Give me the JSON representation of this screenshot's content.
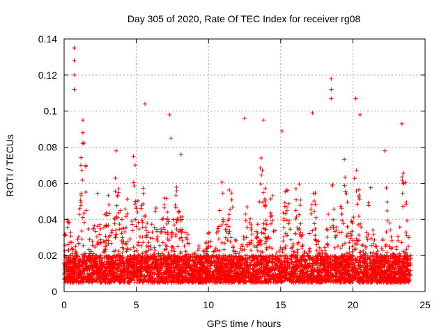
{
  "chart_data": {
    "type": "scatter",
    "title": "Day 305 of 2020, Rate Of TEC Index for receiver rg08",
    "xlabel": "GPS time / hours",
    "ylabel": "ROTI / TECUs",
    "xlim": [
      0,
      25
    ],
    "ylim": [
      0,
      0.14
    ],
    "xticks": [
      "0",
      "5",
      "10",
      "15",
      "20",
      "25"
    ],
    "yticks": [
      "0",
      "0.02",
      "0.04",
      "0.06",
      "0.08",
      "0.1",
      "0.12",
      "0.14"
    ],
    "grid": true,
    "marker": "plus",
    "color": "#ff0000",
    "x_range_of_data": [
      0,
      24
    ],
    "baseline_band": [
      0.005,
      0.02
    ],
    "outlier_points": [
      {
        "x": 0.7,
        "y": 0.135
      },
      {
        "x": 0.7,
        "y": 0.128
      },
      {
        "x": 0.72,
        "y": 0.12
      },
      {
        "x": 0.7,
        "y": 0.112
      },
      {
        "x": 1.3,
        "y": 0.095
      },
      {
        "x": 1.3,
        "y": 0.088
      },
      {
        "x": 1.3,
        "y": 0.082
      },
      {
        "x": 5.6,
        "y": 0.104
      },
      {
        "x": 7.3,
        "y": 0.098
      },
      {
        "x": 7.4,
        "y": 0.085
      },
      {
        "x": 12.5,
        "y": 0.096
      },
      {
        "x": 13.8,
        "y": 0.095
      },
      {
        "x": 15.1,
        "y": 0.089
      },
      {
        "x": 17.2,
        "y": 0.099
      },
      {
        "x": 18.5,
        "y": 0.118
      },
      {
        "x": 18.5,
        "y": 0.112
      },
      {
        "x": 18.5,
        "y": 0.107
      },
      {
        "x": 20.2,
        "y": 0.107
      },
      {
        "x": 20.5,
        "y": 0.098
      },
      {
        "x": 23.4,
        "y": 0.093
      },
      {
        "x": 3.6,
        "y": 0.078
      },
      {
        "x": 4.8,
        "y": 0.075
      },
      {
        "x": 8.1,
        "y": 0.076
      },
      {
        "x": 22.2,
        "y": 0.078
      }
    ],
    "activity_peaks": [
      {
        "x": 0.2,
        "y": 0.045
      },
      {
        "x": 1.3,
        "y": 0.095
      },
      {
        "x": 2.3,
        "y": 0.055
      },
      {
        "x": 3.0,
        "y": 0.057
      },
      {
        "x": 3.7,
        "y": 0.078
      },
      {
        "x": 4.3,
        "y": 0.055
      },
      {
        "x": 4.9,
        "y": 0.072
      },
      {
        "x": 5.5,
        "y": 0.06
      },
      {
        "x": 6.3,
        "y": 0.05
      },
      {
        "x": 7.0,
        "y": 0.055
      },
      {
        "x": 7.8,
        "y": 0.06
      },
      {
        "x": 8.3,
        "y": 0.048
      },
      {
        "x": 9.3,
        "y": 0.03
      },
      {
        "x": 10.0,
        "y": 0.033
      },
      {
        "x": 10.9,
        "y": 0.063
      },
      {
        "x": 11.5,
        "y": 0.066
      },
      {
        "x": 12.7,
        "y": 0.06
      },
      {
        "x": 13.7,
        "y": 0.09
      },
      {
        "x": 14.4,
        "y": 0.055
      },
      {
        "x": 15.4,
        "y": 0.06
      },
      {
        "x": 16.2,
        "y": 0.068
      },
      {
        "x": 17.3,
        "y": 0.06
      },
      {
        "x": 18.5,
        "y": 0.085
      },
      {
        "x": 19.4,
        "y": 0.075
      },
      {
        "x": 20.2,
        "y": 0.08
      },
      {
        "x": 21.2,
        "y": 0.06
      },
      {
        "x": 22.3,
        "y": 0.06
      },
      {
        "x": 23.5,
        "y": 0.07
      }
    ]
  }
}
